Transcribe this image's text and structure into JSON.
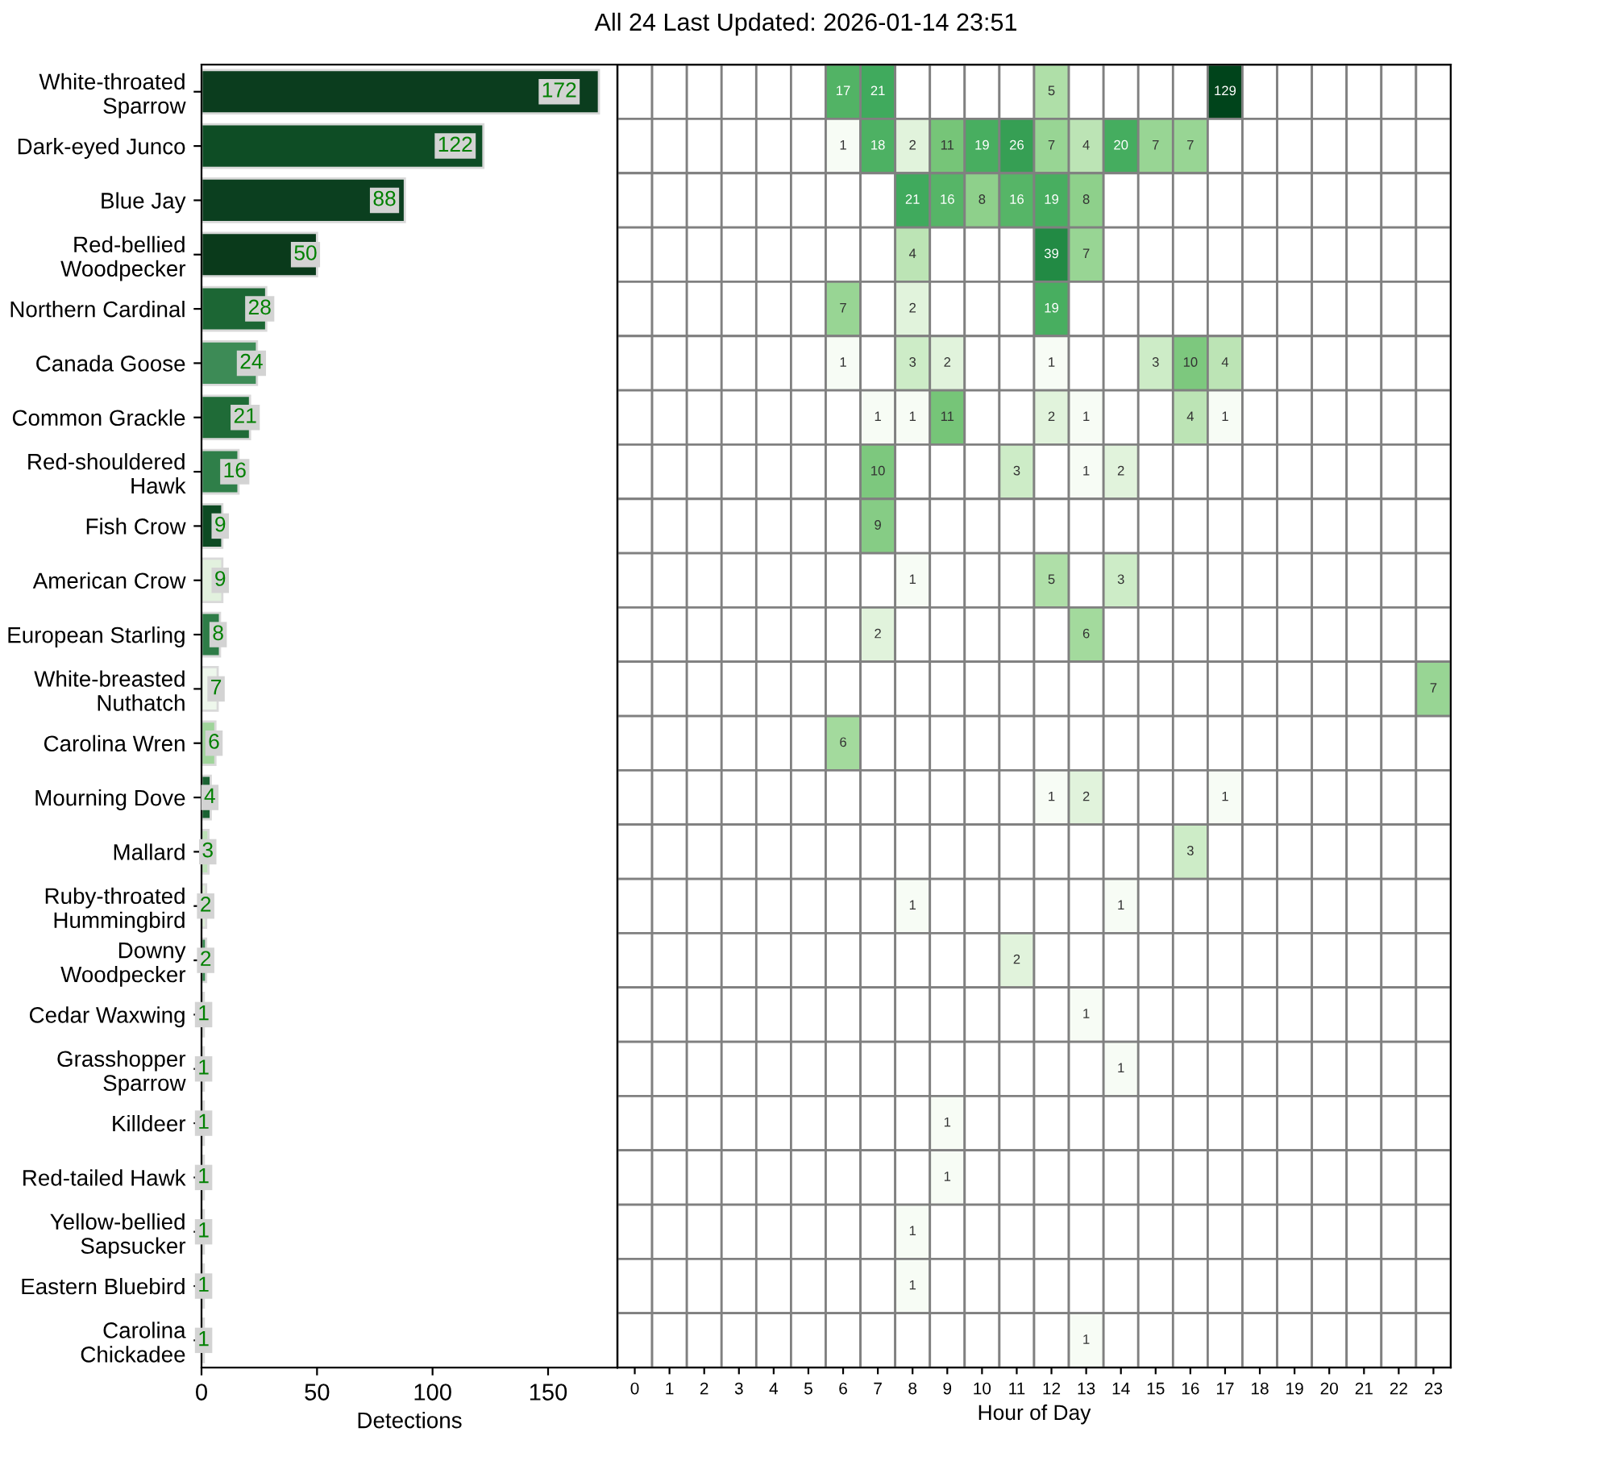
{
  "chart_data": [
    {
      "type": "bar",
      "orientation": "horizontal",
      "categories": [
        "White-throated\nSparrow",
        "Dark-eyed Junco",
        "Blue Jay",
        "Red-bellied\nWoodpecker",
        "Northern Cardinal",
        "Canada Goose",
        "Common Grackle",
        "Red-shouldered\nHawk",
        "Fish Crow",
        "American Crow",
        "European Starling",
        "White-breasted\nNuthatch",
        "Carolina Wren",
        "Mourning Dove",
        "Mallard",
        "Ruby-throated\nHummingbird",
        "Downy\nWoodpecker",
        "Cedar Waxwing",
        "Grasshopper\nSparrow",
        "Killdeer",
        "Red-tailed Hawk",
        "Yellow-bellied\nSapsucker",
        "Eastern Bluebird",
        "Carolina\nChickadee"
      ],
      "values": [
        172,
        122,
        88,
        50,
        28,
        24,
        21,
        16,
        9,
        9,
        8,
        7,
        6,
        4,
        3,
        2,
        2,
        1,
        1,
        1,
        1,
        1,
        1,
        1
      ],
      "colors": [
        "#0b3d1e",
        "#0e4d25",
        "#0b3f1f",
        "#0a3a1b",
        "#1c6634",
        "#3d8b56",
        "#1f6b37",
        "#2f7f49",
        "#0d4a23",
        "#e2f1de",
        "#2e7c47",
        "#eef7ec",
        "#9fd49a",
        "#1a6232",
        "#bde2b7",
        "#dcefd6",
        "#3a8a52",
        "#c7e9c0",
        "#c7e9c0",
        "#c7e9c0",
        "#c7e9c0",
        "#c7e9c0",
        "#c7e9c0",
        "#c7e9c0"
      ],
      "xlim": [
        0,
        180
      ],
      "xticks": [
        0,
        50,
        100,
        150
      ],
      "xlabel": "Detections",
      "data_labels": true
    },
    {
      "type": "heatmap",
      "title": "All 24 Last Updated: 2026-01-14 23:51",
      "categories": [
        "0",
        "1",
        "2",
        "3",
        "4",
        "5",
        "6",
        "7",
        "8",
        "9",
        "10",
        "11",
        "12",
        "13",
        "14",
        "15",
        "16",
        "17",
        "18",
        "19",
        "20",
        "21",
        "22",
        "23"
      ],
      "y_categories": [
        null,
        null,
        null,
        null,
        null,
        null,
        null,
        null,
        null,
        null,
        null,
        null,
        null,
        null,
        null,
        null,
        null,
        null,
        null,
        null,
        null,
        null,
        null,
        null
      ],
      "cells": [
        [
          null,
          null,
          null,
          null,
          null,
          null,
          17,
          21,
          null,
          null,
          null,
          null,
          5,
          null,
          null,
          null,
          null,
          129,
          null,
          null,
          null,
          null,
          null,
          null
        ],
        [
          null,
          null,
          null,
          null,
          null,
          null,
          1,
          18,
          2,
          11,
          19,
          26,
          7,
          4,
          20,
          7,
          7,
          null,
          null,
          null,
          null,
          null,
          null,
          null
        ],
        [
          null,
          null,
          null,
          null,
          null,
          null,
          null,
          null,
          21,
          16,
          8,
          16,
          19,
          8,
          null,
          null,
          null,
          null,
          null,
          null,
          null,
          null,
          null,
          null
        ],
        [
          null,
          null,
          null,
          null,
          null,
          null,
          null,
          null,
          4,
          null,
          null,
          null,
          39,
          7,
          null,
          null,
          null,
          null,
          null,
          null,
          null,
          null,
          null,
          null
        ],
        [
          null,
          null,
          null,
          null,
          null,
          null,
          7,
          null,
          2,
          null,
          null,
          null,
          19,
          null,
          null,
          null,
          null,
          null,
          null,
          null,
          null,
          null,
          null,
          null
        ],
        [
          null,
          null,
          null,
          null,
          null,
          null,
          1,
          null,
          3,
          2,
          null,
          null,
          1,
          null,
          null,
          3,
          10,
          4,
          null,
          null,
          null,
          null,
          null,
          null
        ],
        [
          null,
          null,
          null,
          null,
          null,
          null,
          null,
          1,
          1,
          11,
          null,
          null,
          2,
          1,
          null,
          null,
          4,
          1,
          null,
          null,
          null,
          null,
          null,
          null
        ],
        [
          null,
          null,
          null,
          null,
          null,
          null,
          null,
          10,
          null,
          null,
          null,
          3,
          null,
          1,
          2,
          null,
          null,
          null,
          null,
          null,
          null,
          null,
          null,
          null
        ],
        [
          null,
          null,
          null,
          null,
          null,
          null,
          null,
          9,
          null,
          null,
          null,
          null,
          null,
          null,
          null,
          null,
          null,
          null,
          null,
          null,
          null,
          null,
          null,
          null
        ],
        [
          null,
          null,
          null,
          null,
          null,
          null,
          null,
          null,
          1,
          null,
          null,
          null,
          5,
          null,
          3,
          null,
          null,
          null,
          null,
          null,
          null,
          null,
          null,
          null
        ],
        [
          null,
          null,
          null,
          null,
          null,
          null,
          null,
          2,
          null,
          null,
          null,
          null,
          null,
          6,
          null,
          null,
          null,
          null,
          null,
          null,
          null,
          null,
          null,
          null
        ],
        [
          null,
          null,
          null,
          null,
          null,
          null,
          null,
          null,
          null,
          null,
          null,
          null,
          null,
          null,
          null,
          null,
          null,
          null,
          null,
          null,
          null,
          null,
          null,
          7
        ],
        [
          null,
          null,
          null,
          null,
          null,
          null,
          6,
          null,
          null,
          null,
          null,
          null,
          null,
          null,
          null,
          null,
          null,
          null,
          null,
          null,
          null,
          null,
          null,
          null
        ],
        [
          null,
          null,
          null,
          null,
          null,
          null,
          null,
          null,
          null,
          null,
          null,
          null,
          1,
          2,
          null,
          null,
          null,
          1,
          null,
          null,
          null,
          null,
          null,
          null
        ],
        [
          null,
          null,
          null,
          null,
          null,
          null,
          null,
          null,
          null,
          null,
          null,
          null,
          null,
          null,
          null,
          null,
          3,
          null,
          null,
          null,
          null,
          null,
          null,
          null
        ],
        [
          null,
          null,
          null,
          null,
          null,
          null,
          null,
          null,
          1,
          null,
          null,
          null,
          null,
          null,
          1,
          null,
          null,
          null,
          null,
          null,
          null,
          null,
          null,
          null
        ],
        [
          null,
          null,
          null,
          null,
          null,
          null,
          null,
          null,
          null,
          null,
          null,
          2,
          null,
          null,
          null,
          null,
          null,
          null,
          null,
          null,
          null,
          null,
          null,
          null
        ],
        [
          null,
          null,
          null,
          null,
          null,
          null,
          null,
          null,
          null,
          null,
          null,
          null,
          null,
          1,
          null,
          null,
          null,
          null,
          null,
          null,
          null,
          null,
          null,
          null
        ],
        [
          null,
          null,
          null,
          null,
          null,
          null,
          null,
          null,
          null,
          null,
          null,
          null,
          null,
          null,
          1,
          null,
          null,
          null,
          null,
          null,
          null,
          null,
          null,
          null
        ],
        [
          null,
          null,
          null,
          null,
          null,
          null,
          null,
          null,
          null,
          1,
          null,
          null,
          null,
          null,
          null,
          null,
          null,
          null,
          null,
          null,
          null,
          null,
          null,
          null
        ],
        [
          null,
          null,
          null,
          null,
          null,
          null,
          null,
          null,
          null,
          1,
          null,
          null,
          null,
          null,
          null,
          null,
          null,
          null,
          null,
          null,
          null,
          null,
          null,
          null
        ],
        [
          null,
          null,
          null,
          null,
          null,
          null,
          null,
          null,
          1,
          null,
          null,
          null,
          null,
          null,
          null,
          null,
          null,
          null,
          null,
          null,
          null,
          null,
          null,
          null
        ],
        [
          null,
          null,
          null,
          null,
          null,
          null,
          null,
          null,
          1,
          null,
          null,
          null,
          null,
          null,
          null,
          null,
          null,
          null,
          null,
          null,
          null,
          null,
          null,
          null
        ],
        [
          null,
          null,
          null,
          null,
          null,
          null,
          null,
          null,
          null,
          null,
          null,
          null,
          null,
          1,
          null,
          null,
          null,
          null,
          null,
          null,
          null,
          null,
          null,
          null
        ]
      ],
      "xlabel": "Hour of Day",
      "tick_labels": "x",
      "data_labels": true
    }
  ]
}
